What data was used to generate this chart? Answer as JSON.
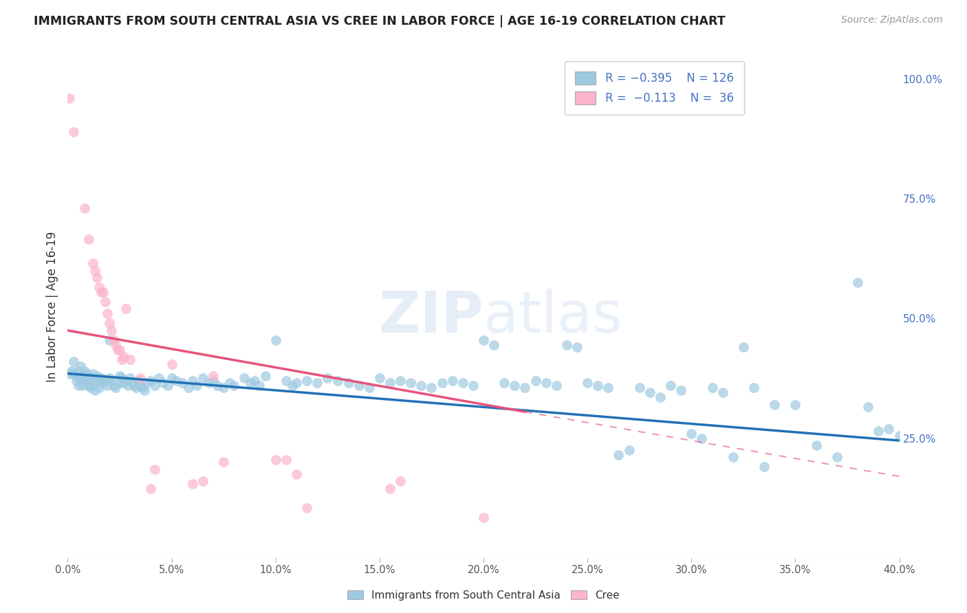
{
  "title": "IMMIGRANTS FROM SOUTH CENTRAL ASIA VS CREE IN LABOR FORCE | AGE 16-19 CORRELATION CHART",
  "source": "Source: ZipAtlas.com",
  "ylabel": "In Labor Force | Age 16-19",
  "ylabel_right_labels": [
    "100.0%",
    "75.0%",
    "50.0%",
    "25.0%"
  ],
  "ylabel_right_values": [
    1.0,
    0.75,
    0.5,
    0.25
  ],
  "xmin": 0.0,
  "xmax": 0.4,
  "ymin": 0.0,
  "ymax": 1.05,
  "legend_label_blue": "Immigrants from South Central Asia",
  "legend_label_pink": "Cree",
  "blue_color": "#9ecae1",
  "pink_color": "#fbb4c9",
  "line_blue": "#2171b5",
  "line_pink": "#e8527a",
  "watermark_color": "#d0dff0",
  "blue_scatter": [
    [
      0.001,
      0.385
    ],
    [
      0.002,
      0.39
    ],
    [
      0.003,
      0.41
    ],
    [
      0.003,
      0.385
    ],
    [
      0.004,
      0.38
    ],
    [
      0.004,
      0.37
    ],
    [
      0.005,
      0.39
    ],
    [
      0.005,
      0.36
    ],
    [
      0.006,
      0.4
    ],
    [
      0.006,
      0.375
    ],
    [
      0.007,
      0.38
    ],
    [
      0.007,
      0.36
    ],
    [
      0.008,
      0.39
    ],
    [
      0.008,
      0.375
    ],
    [
      0.009,
      0.37
    ],
    [
      0.009,
      0.385
    ],
    [
      0.01,
      0.38
    ],
    [
      0.01,
      0.36
    ],
    [
      0.011,
      0.375
    ],
    [
      0.011,
      0.355
    ],
    [
      0.012,
      0.385
    ],
    [
      0.012,
      0.36
    ],
    [
      0.013,
      0.37
    ],
    [
      0.013,
      0.35
    ],
    [
      0.014,
      0.38
    ],
    [
      0.015,
      0.37
    ],
    [
      0.015,
      0.355
    ],
    [
      0.016,
      0.375
    ],
    [
      0.017,
      0.365
    ],
    [
      0.018,
      0.37
    ],
    [
      0.019,
      0.36
    ],
    [
      0.02,
      0.455
    ],
    [
      0.02,
      0.375
    ],
    [
      0.021,
      0.37
    ],
    [
      0.022,
      0.36
    ],
    [
      0.023,
      0.355
    ],
    [
      0.025,
      0.38
    ],
    [
      0.025,
      0.365
    ],
    [
      0.026,
      0.375
    ],
    [
      0.027,
      0.365
    ],
    [
      0.028,
      0.37
    ],
    [
      0.029,
      0.36
    ],
    [
      0.03,
      0.375
    ],
    [
      0.031,
      0.365
    ],
    [
      0.032,
      0.36
    ],
    [
      0.033,
      0.355
    ],
    [
      0.034,
      0.37
    ],
    [
      0.035,
      0.36
    ],
    [
      0.036,
      0.355
    ],
    [
      0.037,
      0.35
    ],
    [
      0.038,
      0.365
    ],
    [
      0.04,
      0.37
    ],
    [
      0.042,
      0.36
    ],
    [
      0.044,
      0.375
    ],
    [
      0.046,
      0.365
    ],
    [
      0.048,
      0.36
    ],
    [
      0.05,
      0.375
    ],
    [
      0.052,
      0.37
    ],
    [
      0.055,
      0.365
    ],
    [
      0.058,
      0.355
    ],
    [
      0.06,
      0.37
    ],
    [
      0.062,
      0.36
    ],
    [
      0.065,
      0.375
    ],
    [
      0.068,
      0.365
    ],
    [
      0.07,
      0.37
    ],
    [
      0.072,
      0.36
    ],
    [
      0.075,
      0.355
    ],
    [
      0.078,
      0.365
    ],
    [
      0.08,
      0.36
    ],
    [
      0.085,
      0.375
    ],
    [
      0.088,
      0.365
    ],
    [
      0.09,
      0.37
    ],
    [
      0.092,
      0.36
    ],
    [
      0.095,
      0.38
    ],
    [
      0.1,
      0.455
    ],
    [
      0.105,
      0.37
    ],
    [
      0.108,
      0.36
    ],
    [
      0.11,
      0.365
    ],
    [
      0.115,
      0.37
    ],
    [
      0.12,
      0.365
    ],
    [
      0.125,
      0.375
    ],
    [
      0.13,
      0.37
    ],
    [
      0.135,
      0.365
    ],
    [
      0.14,
      0.36
    ],
    [
      0.145,
      0.355
    ],
    [
      0.15,
      0.375
    ],
    [
      0.155,
      0.365
    ],
    [
      0.16,
      0.37
    ],
    [
      0.165,
      0.365
    ],
    [
      0.17,
      0.36
    ],
    [
      0.175,
      0.355
    ],
    [
      0.18,
      0.365
    ],
    [
      0.185,
      0.37
    ],
    [
      0.19,
      0.365
    ],
    [
      0.195,
      0.36
    ],
    [
      0.2,
      0.455
    ],
    [
      0.205,
      0.445
    ],
    [
      0.21,
      0.365
    ],
    [
      0.215,
      0.36
    ],
    [
      0.22,
      0.355
    ],
    [
      0.225,
      0.37
    ],
    [
      0.23,
      0.365
    ],
    [
      0.235,
      0.36
    ],
    [
      0.24,
      0.445
    ],
    [
      0.245,
      0.44
    ],
    [
      0.25,
      0.365
    ],
    [
      0.255,
      0.36
    ],
    [
      0.26,
      0.355
    ],
    [
      0.265,
      0.215
    ],
    [
      0.27,
      0.225
    ],
    [
      0.275,
      0.355
    ],
    [
      0.28,
      0.345
    ],
    [
      0.285,
      0.335
    ],
    [
      0.29,
      0.36
    ],
    [
      0.295,
      0.35
    ],
    [
      0.3,
      0.26
    ],
    [
      0.305,
      0.25
    ],
    [
      0.31,
      0.355
    ],
    [
      0.315,
      0.345
    ],
    [
      0.32,
      0.21
    ],
    [
      0.325,
      0.44
    ],
    [
      0.33,
      0.355
    ],
    [
      0.335,
      0.19
    ],
    [
      0.34,
      0.32
    ],
    [
      0.35,
      0.32
    ],
    [
      0.36,
      0.235
    ],
    [
      0.37,
      0.21
    ],
    [
      0.38,
      0.575
    ],
    [
      0.385,
      0.315
    ],
    [
      0.39,
      0.265
    ],
    [
      0.395,
      0.27
    ],
    [
      0.4,
      0.255
    ]
  ],
  "pink_scatter": [
    [
      0.001,
      0.96
    ],
    [
      0.003,
      0.89
    ],
    [
      0.008,
      0.73
    ],
    [
      0.01,
      0.665
    ],
    [
      0.012,
      0.615
    ],
    [
      0.013,
      0.6
    ],
    [
      0.014,
      0.585
    ],
    [
      0.015,
      0.565
    ],
    [
      0.016,
      0.555
    ],
    [
      0.017,
      0.555
    ],
    [
      0.018,
      0.535
    ],
    [
      0.019,
      0.51
    ],
    [
      0.02,
      0.49
    ],
    [
      0.021,
      0.475
    ],
    [
      0.022,
      0.455
    ],
    [
      0.023,
      0.445
    ],
    [
      0.024,
      0.435
    ],
    [
      0.025,
      0.435
    ],
    [
      0.026,
      0.415
    ],
    [
      0.027,
      0.42
    ],
    [
      0.028,
      0.52
    ],
    [
      0.03,
      0.415
    ],
    [
      0.035,
      0.375
    ],
    [
      0.04,
      0.145
    ],
    [
      0.042,
      0.185
    ],
    [
      0.05,
      0.405
    ],
    [
      0.06,
      0.155
    ],
    [
      0.065,
      0.16
    ],
    [
      0.07,
      0.38
    ],
    [
      0.075,
      0.2
    ],
    [
      0.1,
      0.205
    ],
    [
      0.105,
      0.205
    ],
    [
      0.11,
      0.175
    ],
    [
      0.115,
      0.105
    ],
    [
      0.155,
      0.145
    ],
    [
      0.16,
      0.16
    ],
    [
      0.2,
      0.085
    ]
  ],
  "blue_trendline": [
    [
      0.0,
      0.385
    ],
    [
      0.4,
      0.245
    ]
  ],
  "pink_trendline": [
    [
      0.0,
      0.475
    ],
    [
      0.22,
      0.305
    ]
  ]
}
